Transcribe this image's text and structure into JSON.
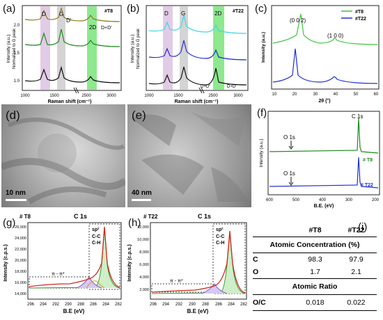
{
  "panels": {
    "a": {
      "label": "(a)",
      "tag": "#T8",
      "ylabel": "Intensity (a.u.)",
      "ylabel2": "Normalized to G peak",
      "xlabel": "Raman shift (cm⁻¹)",
      "ticks_x": [
        "1000",
        "1500",
        "2500",
        "3000"
      ],
      "ticks_y": [
        "1.0",
        "1.5",
        "2.0"
      ],
      "bands": [
        "D",
        "G",
        "D′",
        "2D",
        "D+D′"
      ]
    },
    "b": {
      "label": "(b)",
      "tag": "#T22",
      "ylabel": "Intensity (a.u.)",
      "ylabel2": "Normalized to G peak",
      "xlabel": "Raman shift (cm⁻¹)",
      "ticks_x": [
        "1000",
        "1500",
        "2500",
        "3000"
      ],
      "bands": [
        "D",
        "G",
        "2D",
        "D+D″",
        "D+D′"
      ]
    },
    "c": {
      "label": "(c)",
      "ylabel": "Intensity (a.u.)",
      "xlabel": "2θ (°)",
      "peak1": "(0 0 2)",
      "peak2": "(1 0 0)",
      "legend": [
        "#T8",
        "#T22"
      ],
      "ticks_x": [
        "10",
        "20",
        "30",
        "40",
        "50",
        "60"
      ]
    },
    "d": {
      "label": "(d)",
      "scale": "10 nm"
    },
    "e": {
      "label": "(e)",
      "scale": "40 nm"
    },
    "f": {
      "label": "(f)",
      "ylabel": "Intensity (a.u.)",
      "xlabel": "B.E. (eV)",
      "c1s": "C 1s",
      "o1s": "O 1s",
      "o1s_2": "O 1s",
      "t8": "# T8",
      "t22": "# T22",
      "ticks_x": [
        "600",
        "500",
        "400",
        "300",
        "200"
      ]
    },
    "g": {
      "label": "(g)",
      "tag": "# T8",
      "peak": "C 1s",
      "ylabel": "Intensity (c.p.s.)",
      "xlabel": "B.E (eV)",
      "ticks_y": [
        "14,000",
        "16,000",
        "18,000",
        "20,000",
        "22,000",
        "24,000",
        "26,000"
      ],
      "ticks_x": [
        "296",
        "294",
        "292",
        "290",
        "288",
        "286",
        "284",
        "282"
      ],
      "sp2": "sp²",
      "cc": "C-C",
      "ch": "C-H",
      "pipi": "π - π*"
    },
    "h": {
      "label": "(h)",
      "tag": "# T22",
      "peak": "C 1s",
      "ylabel": "Intensity (c.p.s.)",
      "xlabel": "B.E (eV)",
      "ticks_y": [
        "2,000",
        "4,000",
        "6,000",
        "8,000",
        "10,000",
        "12,000"
      ],
      "ticks_x": [
        "296",
        "294",
        "292",
        "290",
        "288",
        "286",
        "284",
        "282"
      ],
      "sp2": "sp²",
      "cc": "C-C",
      "ch": "C-H",
      "pipi": "π - π*"
    },
    "i": {
      "label": "(i)"
    }
  },
  "table": {
    "headers": [
      "",
      "#T8",
      "#T22"
    ],
    "section1": "Atomic Concentration (%)",
    "rows1": [
      [
        "C",
        "98.3",
        "97.9"
      ],
      [
        "O",
        "1.7",
        "2.1"
      ]
    ],
    "section2": "Atomic Ratio",
    "rows2": [
      [
        "O/C",
        "0.018",
        "0.022"
      ]
    ]
  },
  "colors": {
    "t8": "#3ec43e",
    "t22": "#1f2fd0",
    "pink": "#e2cbe6",
    "gray": "#d4d4d4",
    "green": "#8ee88e"
  }
}
